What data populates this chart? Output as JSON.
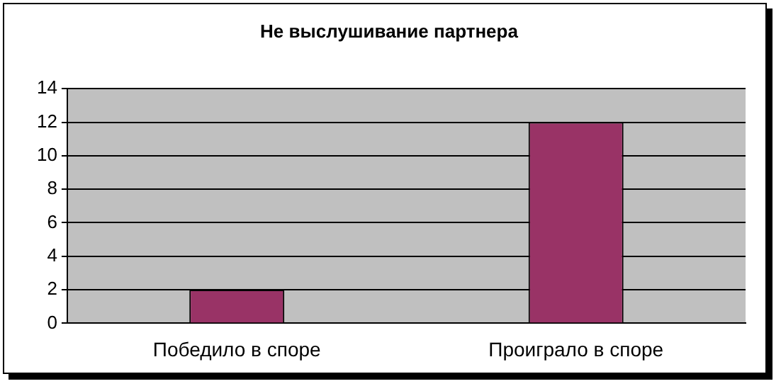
{
  "chart_data": {
    "type": "bar",
    "title": "Не выслушивание партнера",
    "categories": [
      "Победило в споре",
      "Проиграло в споре"
    ],
    "values": [
      2,
      12
    ],
    "color": "#993366",
    "ylim": [
      0,
      14
    ],
    "yticks": [
      0,
      2,
      4,
      6,
      8,
      10,
      12,
      14
    ],
    "grid": "y"
  }
}
